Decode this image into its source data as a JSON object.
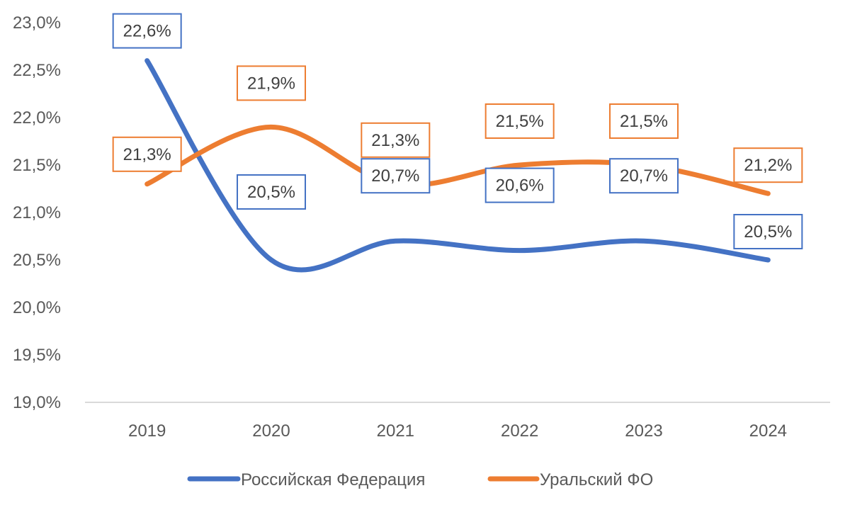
{
  "chart_data": {
    "type": "line",
    "categories": [
      "2019",
      "2020",
      "2021",
      "2022",
      "2023",
      "2024"
    ],
    "series": [
      {
        "name": "Российская Федерация",
        "values": [
          22.6,
          20.5,
          20.7,
          20.6,
          20.7,
          20.5
        ],
        "data_labels": [
          "22,6%",
          "20,5%",
          "20,7%",
          "20,6%",
          "20,7%",
          "20,5%"
        ],
        "color": "#4472C4",
        "smooth": true
      },
      {
        "name": "Уральский ФО",
        "values": [
          21.3,
          21.9,
          21.3,
          21.5,
          21.5,
          21.2
        ],
        "data_labels": [
          "21,3%",
          "21,9%",
          "21,3%",
          "21,5%",
          "21,5%",
          "21,2%"
        ],
        "color": "#ED7D31",
        "smooth": true
      }
    ],
    "ylim": [
      19.0,
      23.0
    ],
    "yticks": [
      19.0,
      19.5,
      20.0,
      20.5,
      21.0,
      21.5,
      22.0,
      22.5,
      23.0
    ],
    "ytick_labels": [
      "19,0%",
      "19,5%",
      "20,0%",
      "20,5%",
      "21,0%",
      "21,5%",
      "22,0%",
      "22,5%",
      "23,0%"
    ],
    "grid": false,
    "legend_position": "bottom"
  }
}
